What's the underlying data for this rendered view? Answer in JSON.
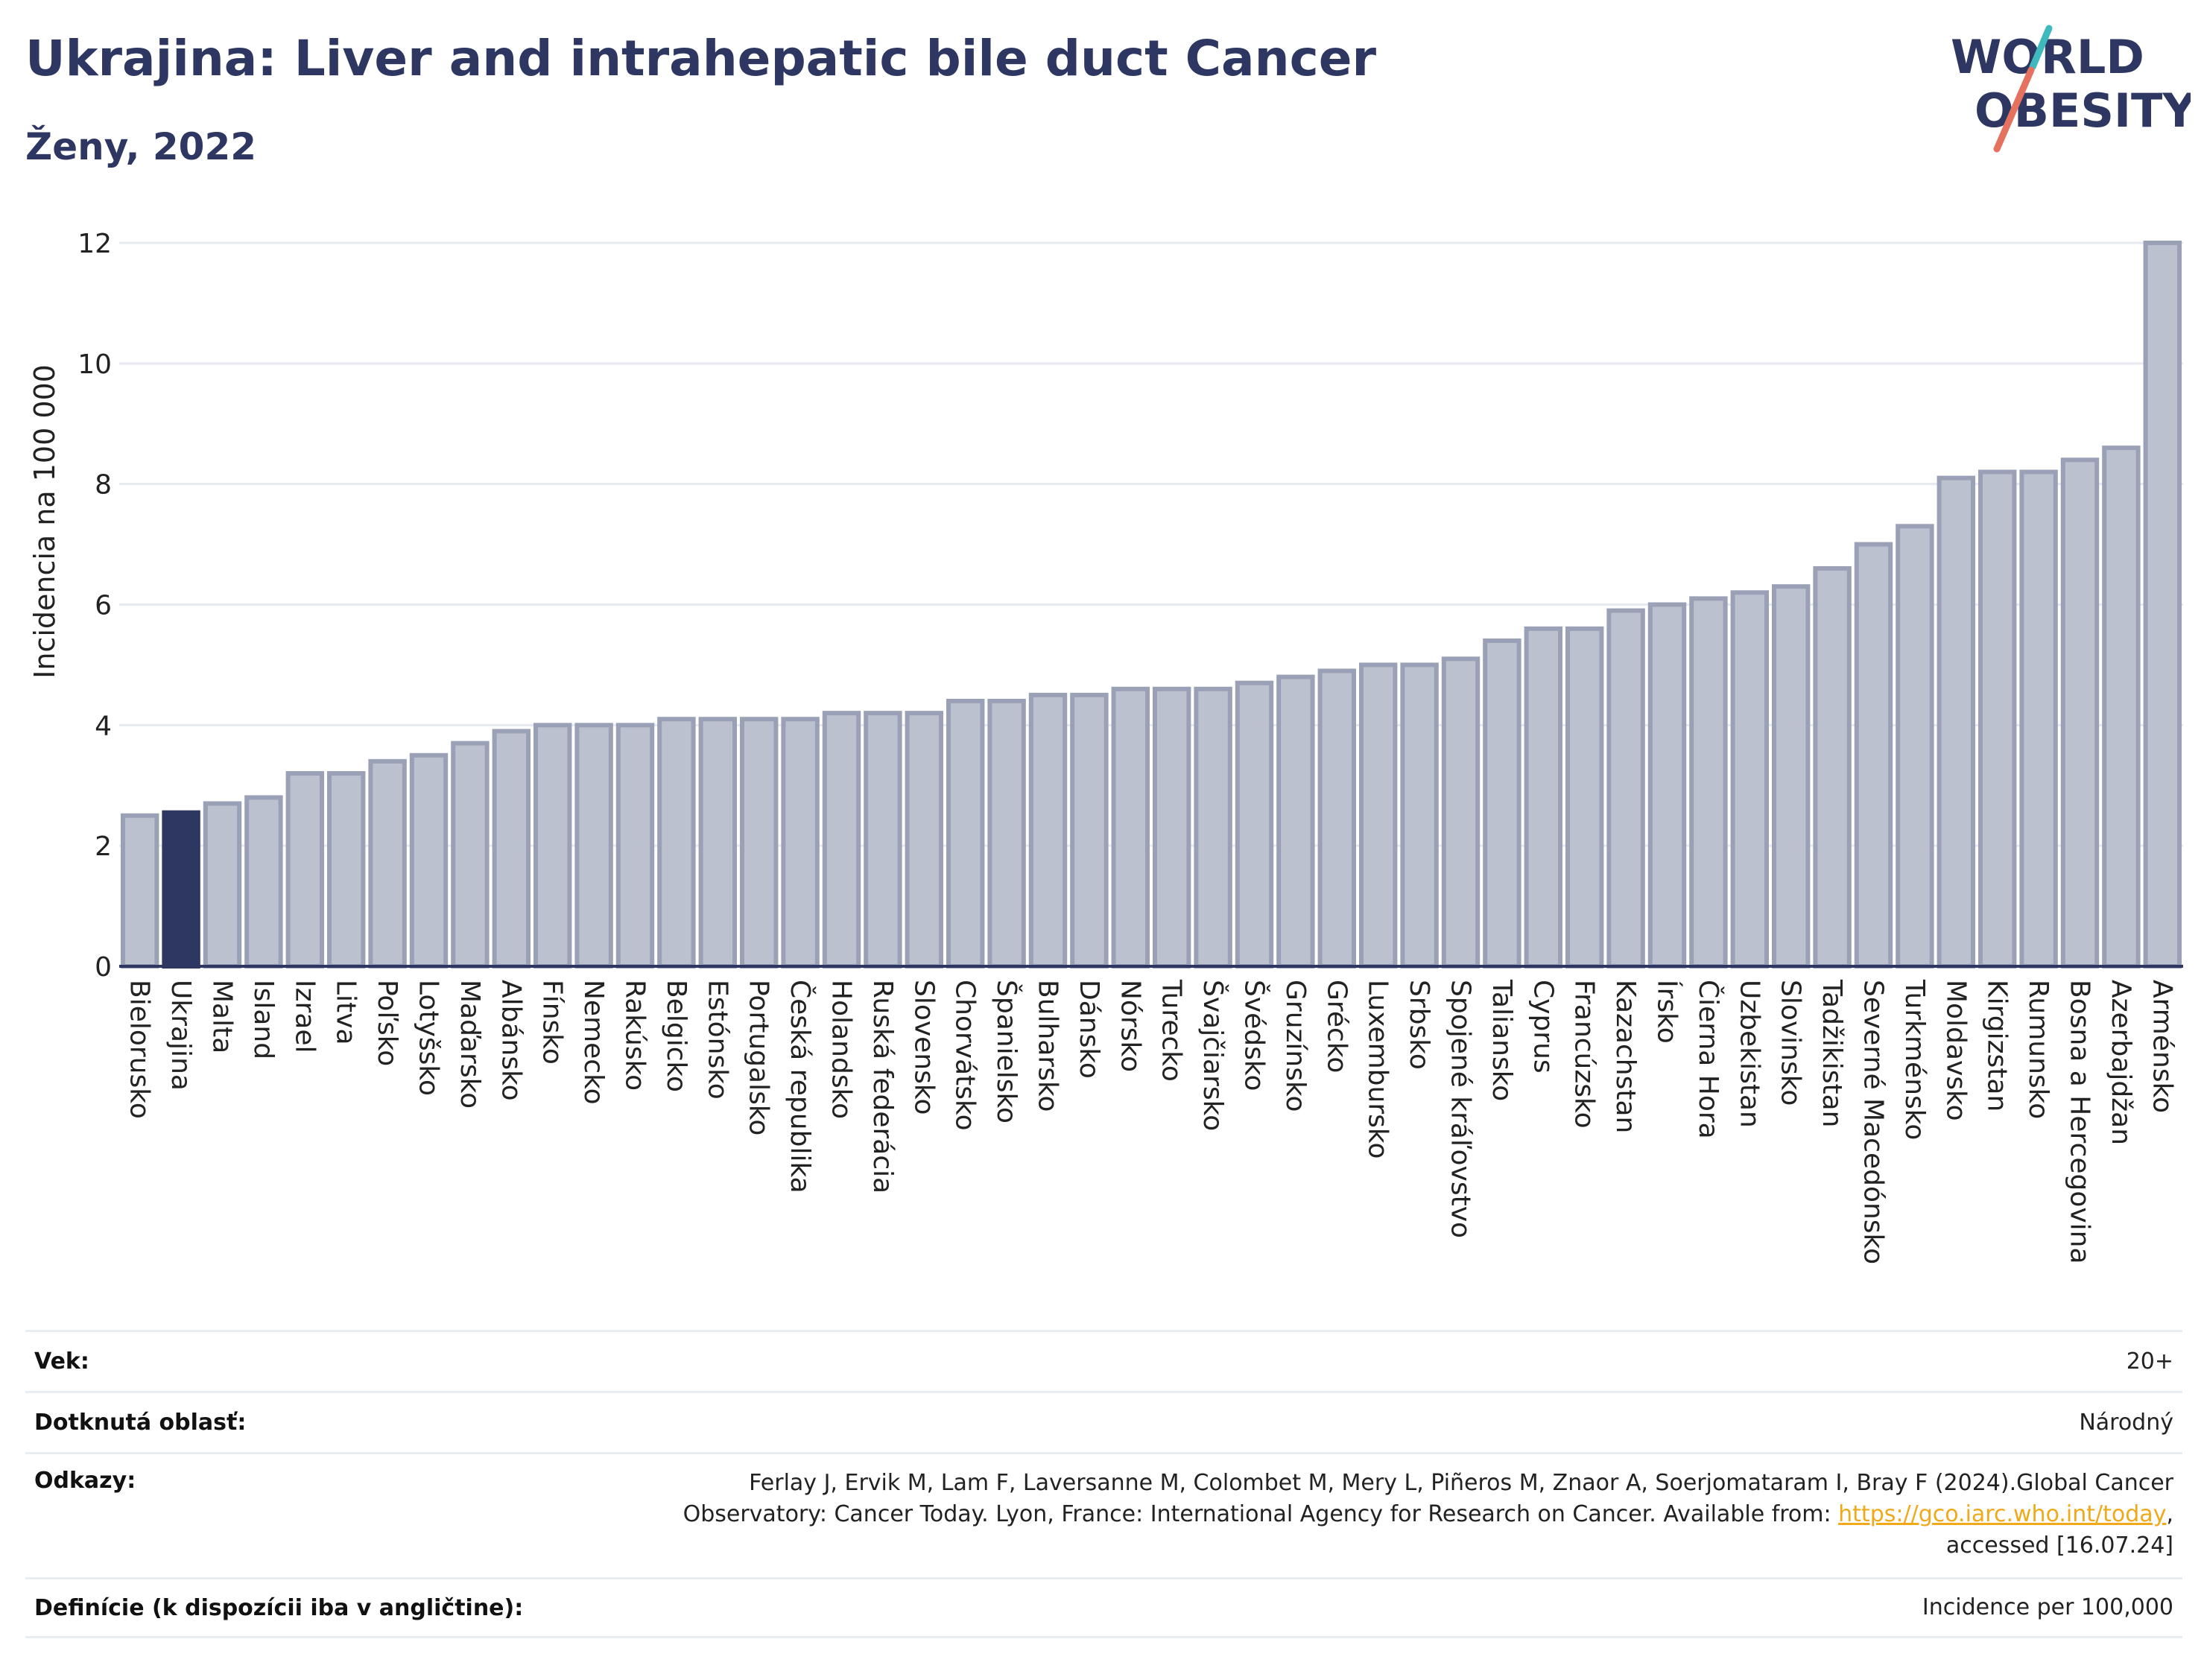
{
  "header": {
    "title": "Ukrajina: Liver and intrahepatic bile duct Cancer",
    "subtitle": "Ženy, 2022"
  },
  "logo": {
    "line1": "WORLD",
    "line2": "OBESITY",
    "colors": {
      "text": "#2d3762",
      "slash_red": "#e5725f",
      "slash_teal": "#3fb9bd"
    }
  },
  "chart_data": {
    "type": "bar",
    "ylabel": "Incidencia na 100 000",
    "ylim": [
      0,
      12
    ],
    "yticks": [
      0,
      2,
      4,
      6,
      8,
      10,
      12
    ],
    "grid": true,
    "highlight": "Ukrajina",
    "colors": {
      "bar": "#bcc1d0",
      "bar_edge": "#9aa0b6",
      "highlight": "#2d3762"
    },
    "categories": [
      "Bielorusko",
      "Ukrajina",
      "Malta",
      "Island",
      "Izrael",
      "Litva",
      "Poľsko",
      "Lotyšsko",
      "Maďarsko",
      "Albánsko",
      "Fínsko",
      "Nemecko",
      "Rakúsko",
      "Belgicko",
      "Estónsko",
      "Portugalsko",
      "Česká republika",
      "Holandsko",
      "Ruská federácia",
      "Slovensko",
      "Chorvátsko",
      "Španielsko",
      "Bulharsko",
      "Dánsko",
      "Nórsko",
      "Turecko",
      "Švajčiarsko",
      "Švédsko",
      "Gruzínsko",
      "Grécko",
      "Luxembursko",
      "Srbsko",
      "Spojené kráľovstvo",
      "Taliansko",
      "Cyprus",
      "Francúzsko",
      "Kazachstan",
      "Írsko",
      "Čierna Hora",
      "Uzbekistan",
      "Slovinsko",
      "Tadžikistan",
      "Severné Macedónsko",
      "Turkménsko",
      "Moldavsko",
      "Kirgizstan",
      "Rumunsko",
      "Bosna a Hercegovina",
      "Azerbajdžan",
      "Arménsko"
    ],
    "values": [
      2.5,
      2.55,
      2.7,
      2.8,
      3.2,
      3.2,
      3.4,
      3.5,
      3.7,
      3.9,
      4.0,
      4.0,
      4.0,
      4.1,
      4.1,
      4.1,
      4.1,
      4.2,
      4.2,
      4.2,
      4.4,
      4.4,
      4.5,
      4.5,
      4.6,
      4.6,
      4.6,
      4.7,
      4.8,
      4.9,
      5.0,
      5.0,
      5.1,
      5.4,
      5.6,
      5.6,
      5.9,
      6.0,
      6.1,
      6.2,
      6.3,
      6.6,
      7.0,
      7.3,
      8.1,
      8.2,
      8.2,
      8.4,
      8.6,
      12.0
    ]
  },
  "info": {
    "age_label": "Vek:",
    "age_value": "20+",
    "area_label": "Dotknutá oblasť:",
    "area_value": "Národný",
    "refs_label": "Odkazy:",
    "refs_line1": "Ferlay J, Ervik M, Lam F, Laversanne M, Colombet M, Mery L, Piñeros M, Znaor A, Soerjomataram I, Bray F (2024).Global Cancer",
    "refs_line2_pre": "Observatory: Cancer Today. Lyon, France: International Agency for Research on Cancer. Available from: ",
    "refs_link": "https://gco.iarc.who.int/today",
    "refs_line2_post": ",",
    "refs_line3": "accessed [16.07.24]",
    "defs_label": "Definície (k dispozícii iba v angličtine):",
    "defs_value": "Incidence per 100,000"
  }
}
